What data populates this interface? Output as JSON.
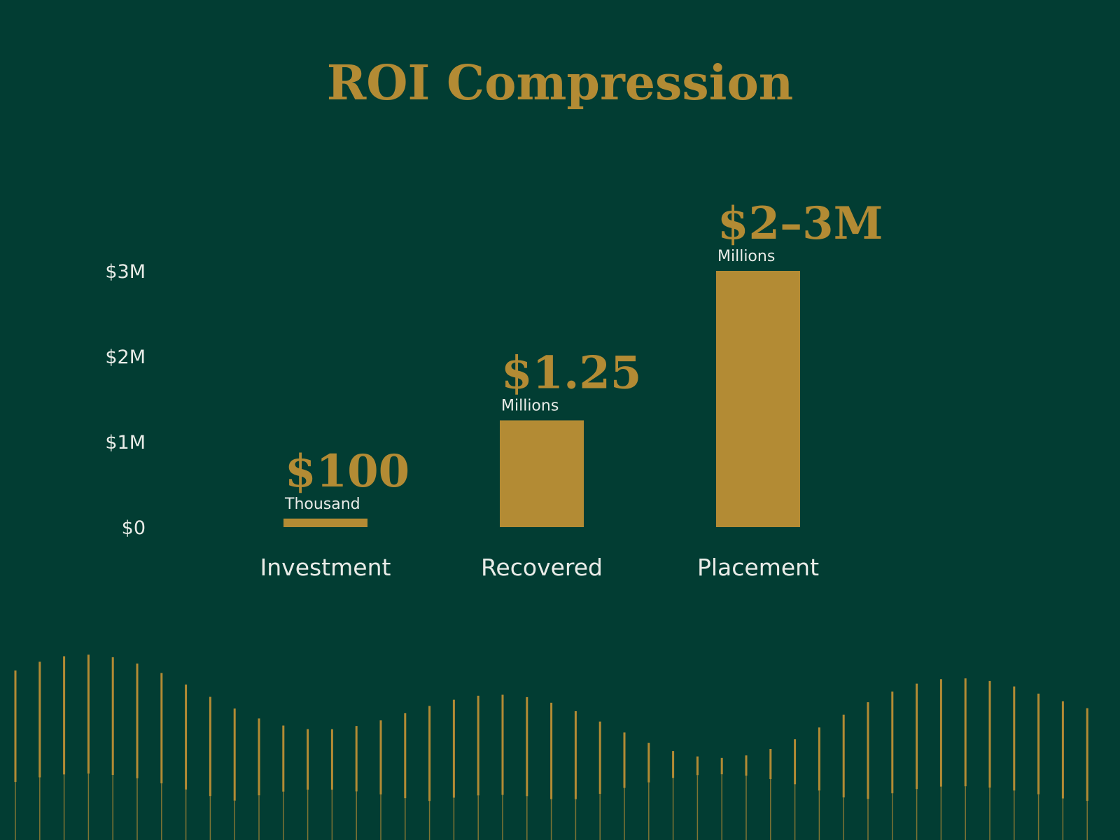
{
  "colors": {
    "background": "#023d33",
    "accent": "#b38b34",
    "text": "#e9ece8"
  },
  "chart_data": {
    "type": "bar",
    "title": "ROI Compression",
    "xlabel": "",
    "ylabel": "",
    "ylim": [
      0,
      3000000
    ],
    "y_ticks": [
      {
        "value": 0,
        "label": "$0"
      },
      {
        "value": 1000000,
        "label": "$1M"
      },
      {
        "value": 2000000,
        "label": "$2M"
      },
      {
        "value": 3000000,
        "label": "$3M"
      }
    ],
    "grid": true,
    "categories": [
      "Investment",
      "Recovered",
      "Placement"
    ],
    "values": [
      100000,
      1250000,
      3000000
    ],
    "data_labels": [
      {
        "value_text": "$100",
        "unit_text": "Thousand"
      },
      {
        "value_text": "$1.25",
        "unit_text": "Millions"
      },
      {
        "value_text": "$2–3M",
        "unit_text": "Millions"
      }
    ]
  }
}
